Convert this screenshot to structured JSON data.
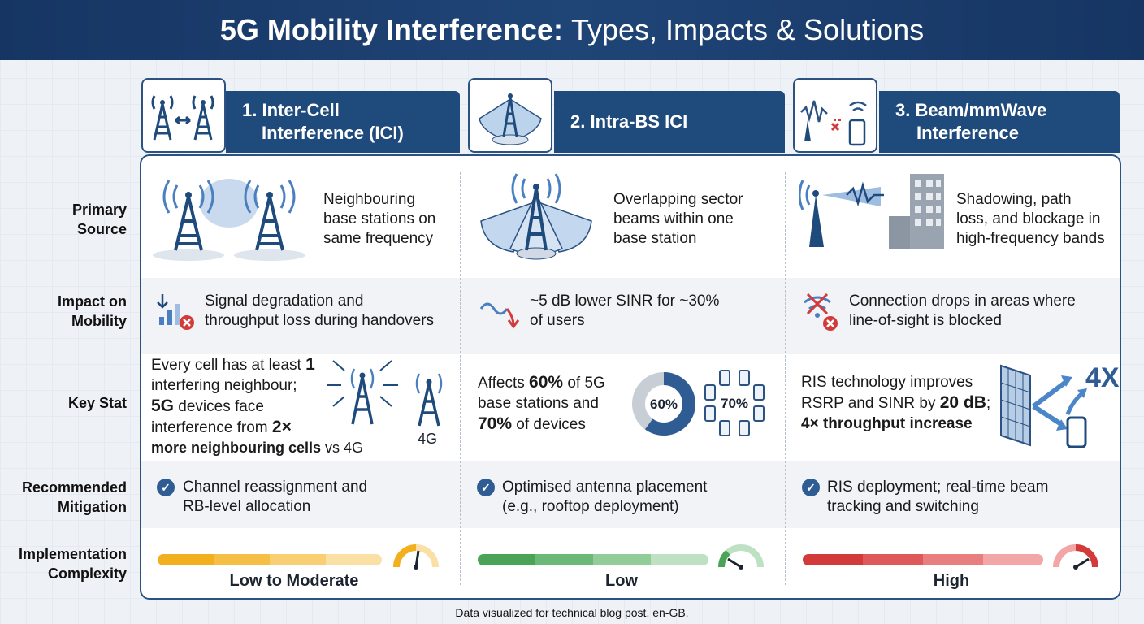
{
  "title": {
    "bold": "5G Mobility Interference:",
    "rest": "Types, Impacts & Solutions"
  },
  "columns": [
    {
      "header": "1. Inter-Cell Interference (ICI)",
      "header_l1": "1. Inter-Cell",
      "header_l2": "Interference (ICI)"
    },
    {
      "header": "2. Intra-BS ICI",
      "header_l1": "2. Intra-BS ICI",
      "header_l2": ""
    },
    {
      "header": "3. Beam/mmWave Interference",
      "header_l1": "3. Beam/mmWave",
      "header_l2": "Interference"
    }
  ],
  "row_labels": {
    "source_l1": "Primary",
    "source_l2": "Source",
    "impact_l1": "Impact on",
    "impact_l2": "Mobility",
    "stat": "Key Stat",
    "mitigation_l1": "Recommended",
    "mitigation_l2": "Mitigation",
    "complexity_l1": "Implementation",
    "complexity_l2": "Complexity"
  },
  "source": [
    {
      "l1": "Neighbouring",
      "l2": "base stations on",
      "l3": "same frequency"
    },
    {
      "l1": "Overlapping sector",
      "l2": "beams within one",
      "l3": "base station"
    },
    {
      "l1": "Shadowing, path",
      "l2": "loss, and blockage in",
      "l3": "high-frequency bands"
    }
  ],
  "impact": [
    {
      "l1": "Signal degradation and",
      "l2": "throughput loss during handovers"
    },
    {
      "l1": "~5 dB lower SINR for ~30%",
      "l2": "of users"
    },
    {
      "l1": "Connection drops in areas where",
      "l2": "line-of-sight is blocked"
    }
  ],
  "stat": {
    "ici": {
      "a": "Every cell has at least ",
      "a_b": "1",
      "b": "interfering neighbour;",
      "c_b": "5G",
      "c": " devices face",
      "d": "interference from ",
      "d_b": "2×",
      "e_b": "more neighbouring cells",
      "e": " vs 4G",
      "tower_label": "4G"
    },
    "intra": {
      "a": "Affects ",
      "a_b": "60%",
      "a2": " of 5G",
      "b": "base stations and",
      "c_b": "70%",
      "c": " of devices",
      "donut_label": "60%",
      "donut_value": 60,
      "devices_label": "70%"
    },
    "beam": {
      "a": "RIS technology improves",
      "b": "RSRP and SINR by ",
      "b_b": "20 dB",
      "b2": ";",
      "c_b": "4× throughput increase",
      "badge": "4X"
    }
  },
  "mitigation": [
    {
      "l1": "Channel reassignment and",
      "l2": "RB-level allocation"
    },
    {
      "l1": "Optimised antenna placement",
      "l2": "(e.g., rooftop deployment)"
    },
    {
      "l1": "RIS deployment; real-time beam",
      "l2": "tracking and switching"
    }
  ],
  "complexity": [
    {
      "label": "Low to Moderate",
      "color": "#f2b01e"
    },
    {
      "label": "Low",
      "color": "#4aa356"
    },
    {
      "label": "High",
      "color": "#d33a3a"
    }
  ],
  "footer": "Data visualized for technical blog post. en-GB."
}
